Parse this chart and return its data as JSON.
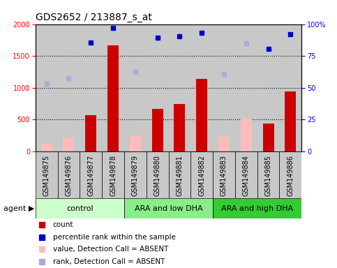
{
  "title": "GDS2652 / 213887_s_at",
  "samples": [
    "GSM149875",
    "GSM149876",
    "GSM149877",
    "GSM149878",
    "GSM149879",
    "GSM149880",
    "GSM149881",
    "GSM149882",
    "GSM149883",
    "GSM149884",
    "GSM149885",
    "GSM149886"
  ],
  "groups": [
    {
      "label": "control",
      "color": "#ccffcc",
      "start": 0,
      "end": 4
    },
    {
      "label": "ARA and low DHA",
      "color": "#88ee88",
      "start": 4,
      "end": 8
    },
    {
      "label": "ARA and high DHA",
      "color": "#33cc33",
      "start": 8,
      "end": 12
    }
  ],
  "count_present": [
    null,
    null,
    570,
    1670,
    null,
    665,
    750,
    1140,
    null,
    null,
    440,
    940
  ],
  "count_absent": [
    120,
    215,
    null,
    null,
    255,
    null,
    null,
    null,
    225,
    510,
    null,
    null
  ],
  "rank_present_raw": [
    null,
    null,
    1710,
    1940,
    null,
    1790,
    1810,
    1860,
    null,
    null,
    1615,
    1845
  ],
  "rank_absent_raw": [
    1060,
    1150,
    null,
    null,
    1255,
    null,
    null,
    null,
    1215,
    1695,
    null,
    null
  ],
  "ylim_left": [
    0,
    2000
  ],
  "ylim_right": [
    0,
    100
  ],
  "yticks_left": [
    0,
    500,
    1000,
    1500,
    2000
  ],
  "yticks_right": [
    0,
    25,
    50,
    75,
    100
  ],
  "bar_color_present": "#cc0000",
  "bar_color_absent": "#ffbbbb",
  "rank_color_present": "#0000cc",
  "rank_color_absent": "#aaaadd",
  "bg_axes": "#c8c8c8",
  "bg_figure": "#ffffff",
  "title_fontsize": 10,
  "tick_fontsize": 7,
  "label_fontsize": 8,
  "legend_fontsize": 7.5,
  "bar_width": 0.5
}
